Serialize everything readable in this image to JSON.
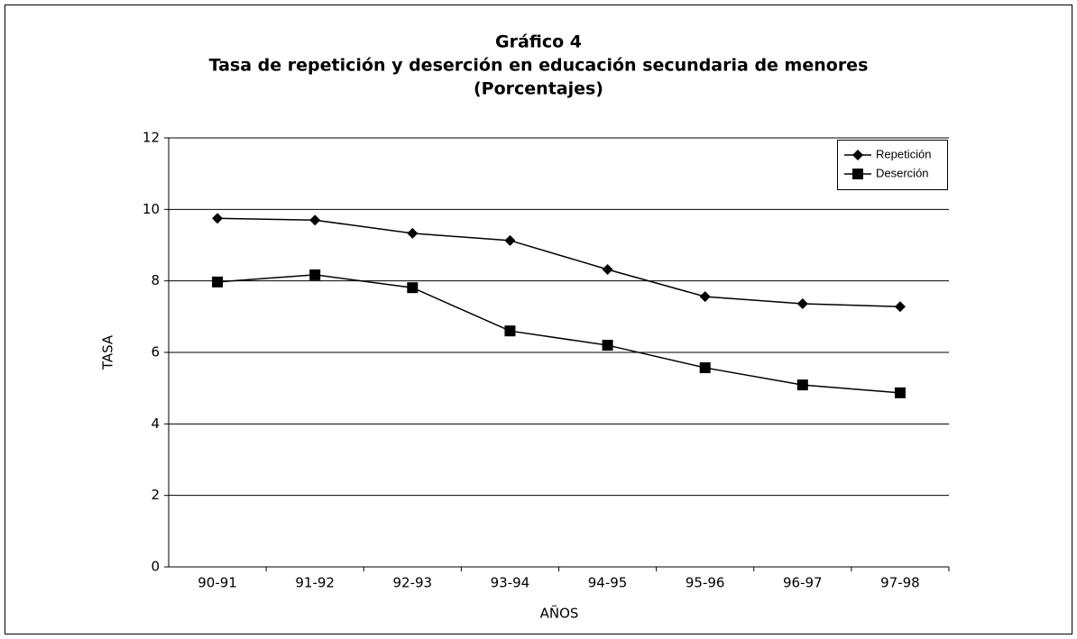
{
  "chart_data": {
    "type": "line",
    "title": [
      "Gráfico 4",
      "Tasa de repetición y deserción en educación secundaria de menores",
      "(Porcentajes)"
    ],
    "x_label": "AÑOS",
    "y_label": "TASA",
    "categories": [
      "90-91",
      "91-92",
      "92-93",
      "93-94",
      "94-95",
      "95-96",
      "96-97",
      "97-98"
    ],
    "series": [
      {
        "name": "Repetición",
        "color": "#000000",
        "marker": "diamond",
        "values": [
          9.75,
          9.7,
          9.33,
          9.13,
          8.32,
          7.56,
          7.36,
          7.28
        ]
      },
      {
        "name": "Deserción",
        "color": "#000000",
        "marker": "square",
        "values": [
          7.97,
          8.17,
          7.81,
          6.6,
          6.2,
          5.57,
          5.09,
          4.87
        ]
      }
    ],
    "ylim": [
      0,
      12
    ],
    "yticks": [
      0,
      2,
      4,
      6,
      8,
      10,
      12
    ],
    "grid": true,
    "legend": "top-right"
  }
}
